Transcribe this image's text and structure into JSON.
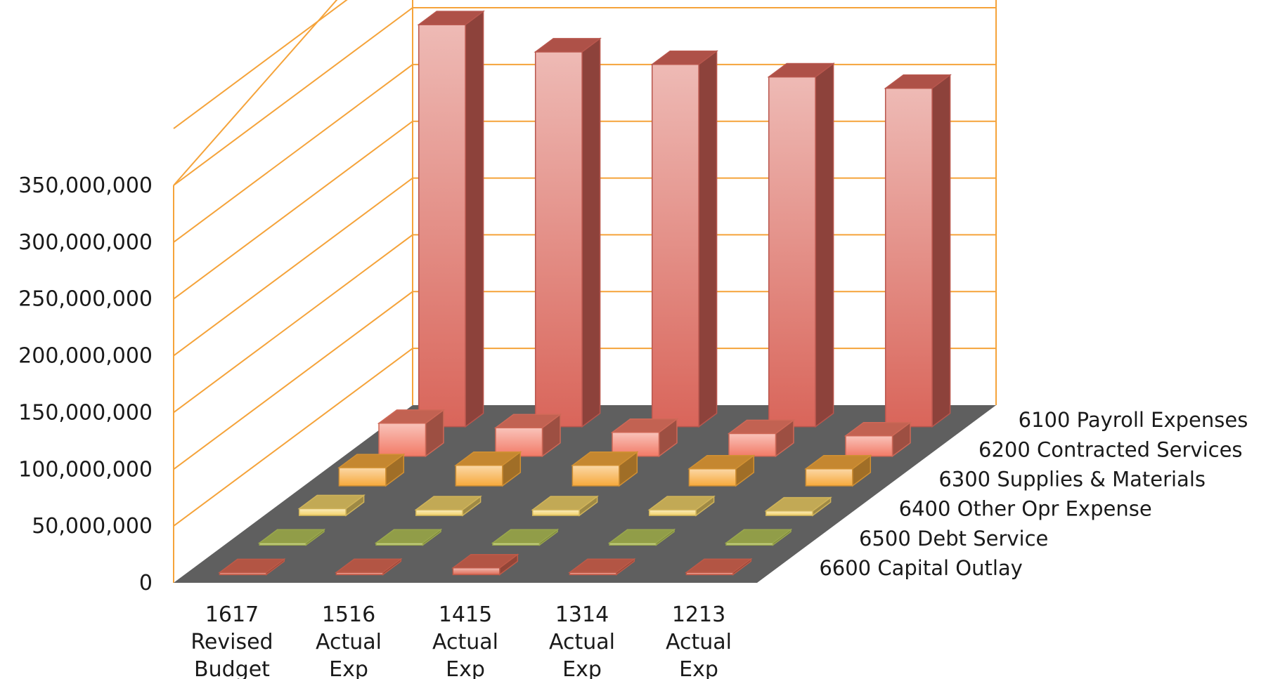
{
  "chart_data": {
    "type": "bar",
    "subtype": "3d-column",
    "title": "",
    "xlabel": "",
    "ylabel": "",
    "ylim": [
      0,
      350000000
    ],
    "yticks": [
      "0",
      "50,000,000",
      "100,000,000",
      "150,000,000",
      "200,000,000",
      "250,000,000",
      "300,000,000",
      "350,000,000"
    ],
    "grid": true,
    "categories": [
      [
        "1617",
        "Revised",
        "Budget"
      ],
      [
        "1516",
        "Actual",
        "Exp"
      ],
      [
        "1415",
        "Actual",
        "Exp"
      ],
      [
        "1314",
        "Actual",
        "Exp"
      ],
      [
        "1213",
        "Actual",
        "Exp"
      ]
    ],
    "series": [
      {
        "name": "6100 Payroll Expenses",
        "color": "#d9655a",
        "values": [
          354000000,
          330000000,
          319000000,
          308000000,
          298000000
        ]
      },
      {
        "name": "6200 Contracted Services",
        "color": "#f27a66",
        "values": [
          29000000,
          25000000,
          21000000,
          20000000,
          18000000
        ]
      },
      {
        "name": "6300 Supplies & Materials",
        "color": "#f6a93c",
        "values": [
          16000000,
          18000000,
          18000000,
          15000000,
          15000000
        ]
      },
      {
        "name": "6400 Other Opr Expense",
        "color": "#f3d36a",
        "values": [
          6000000,
          5000000,
          5000000,
          5000000,
          4000000
        ]
      },
      {
        "name": "6500 Debt Service",
        "color": "#b5c45a",
        "values": [
          0,
          0,
          0,
          0,
          0
        ]
      },
      {
        "name": "6600 Capital Outlay",
        "color": "#e06a55",
        "values": [
          1000000,
          2000000,
          6000000,
          2000000,
          2000000
        ]
      }
    ],
    "colors": {
      "floor": "#5f5f5f",
      "grid": "#f5a33a"
    }
  }
}
